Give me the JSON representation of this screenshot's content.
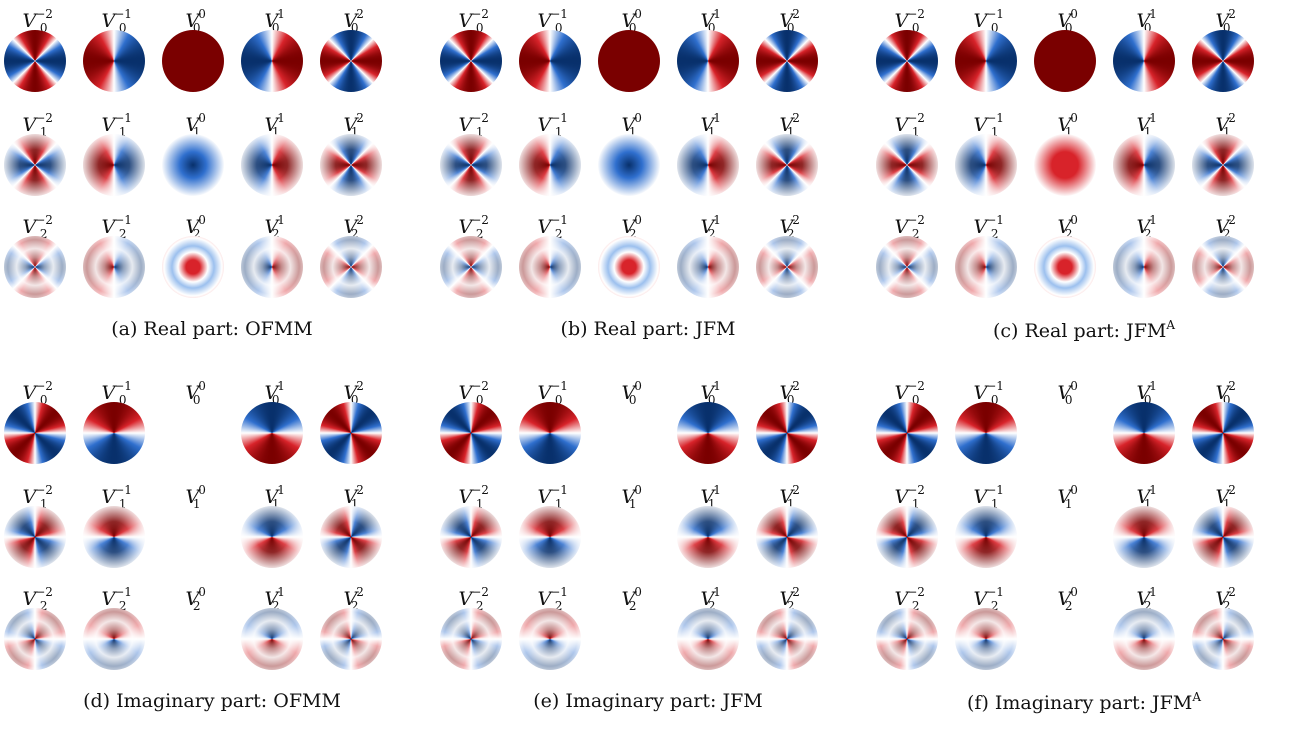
{
  "panels": [
    {
      "id": "a",
      "caption": "(a) Real part:  OFMM",
      "caption_sup": "",
      "part": "real",
      "variant": "ofmm"
    },
    {
      "id": "b",
      "caption": "(b) Real part:  JFM",
      "caption_sup": "",
      "part": "real",
      "variant": "jfm"
    },
    {
      "id": "c",
      "caption": "(c) Real part:  JFM",
      "caption_sup": "A",
      "part": "real",
      "variant": "jfma"
    },
    {
      "id": "d",
      "caption": "(d) Imaginary part:  OFMM",
      "caption_sup": "",
      "part": "imag",
      "variant": "ofmm"
    },
    {
      "id": "e",
      "caption": "(e) Imaginary part:  JFM",
      "caption_sup": "",
      "part": "imag",
      "variant": "jfm"
    },
    {
      "id": "f",
      "caption": "(f) Imaginary part:  JFM",
      "caption_sup": "A",
      "part": "imag",
      "variant": "jfma"
    }
  ],
  "grid": {
    "symbol": "V",
    "rows": [
      0,
      1,
      2
    ],
    "cols": [
      -2,
      -1,
      0,
      1,
      2
    ],
    "imag_empty_col": 0
  },
  "colors": {
    "negative": "#08306b",
    "mid_blue": "#2f6fce",
    "white": "#ffffff",
    "mid_red": "#d8232a",
    "positive": "#7a0000"
  }
}
